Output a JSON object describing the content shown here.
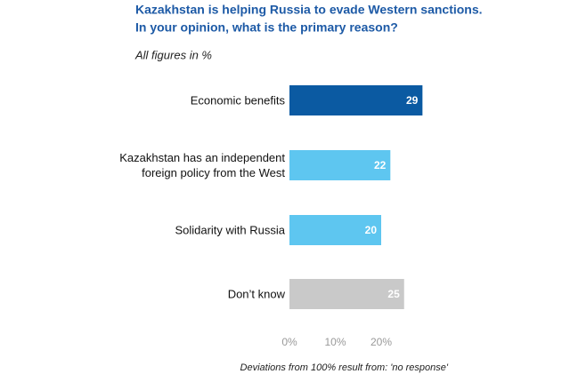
{
  "chart_data": {
    "type": "bar",
    "orientation": "horizontal",
    "title": [
      "Kazakhstan is helping Russia to evade Western sanctions.",
      "In your opinion, what is the primary reason?"
    ],
    "subtitle": "All figures in %",
    "footnote": "Deviations from 100% result from: 'no response'",
    "categories": [
      "Economic benefits",
      "Kazakhstan has an independent\nforeign policy from the West",
      "Solidarity with Russia",
      "Don’t know"
    ],
    "values": [
      29,
      22,
      20,
      25
    ],
    "colors": [
      "#0b5aa2",
      "#5ec6f0",
      "#5ec6f0",
      "#c9c9c9"
    ],
    "xlim": [
      0,
      30
    ],
    "xticks": [
      {
        "value": 0,
        "label": "0%"
      },
      {
        "value": 10,
        "label": "10%"
      },
      {
        "value": 20,
        "label": "20%"
      }
    ],
    "grid": false
  }
}
